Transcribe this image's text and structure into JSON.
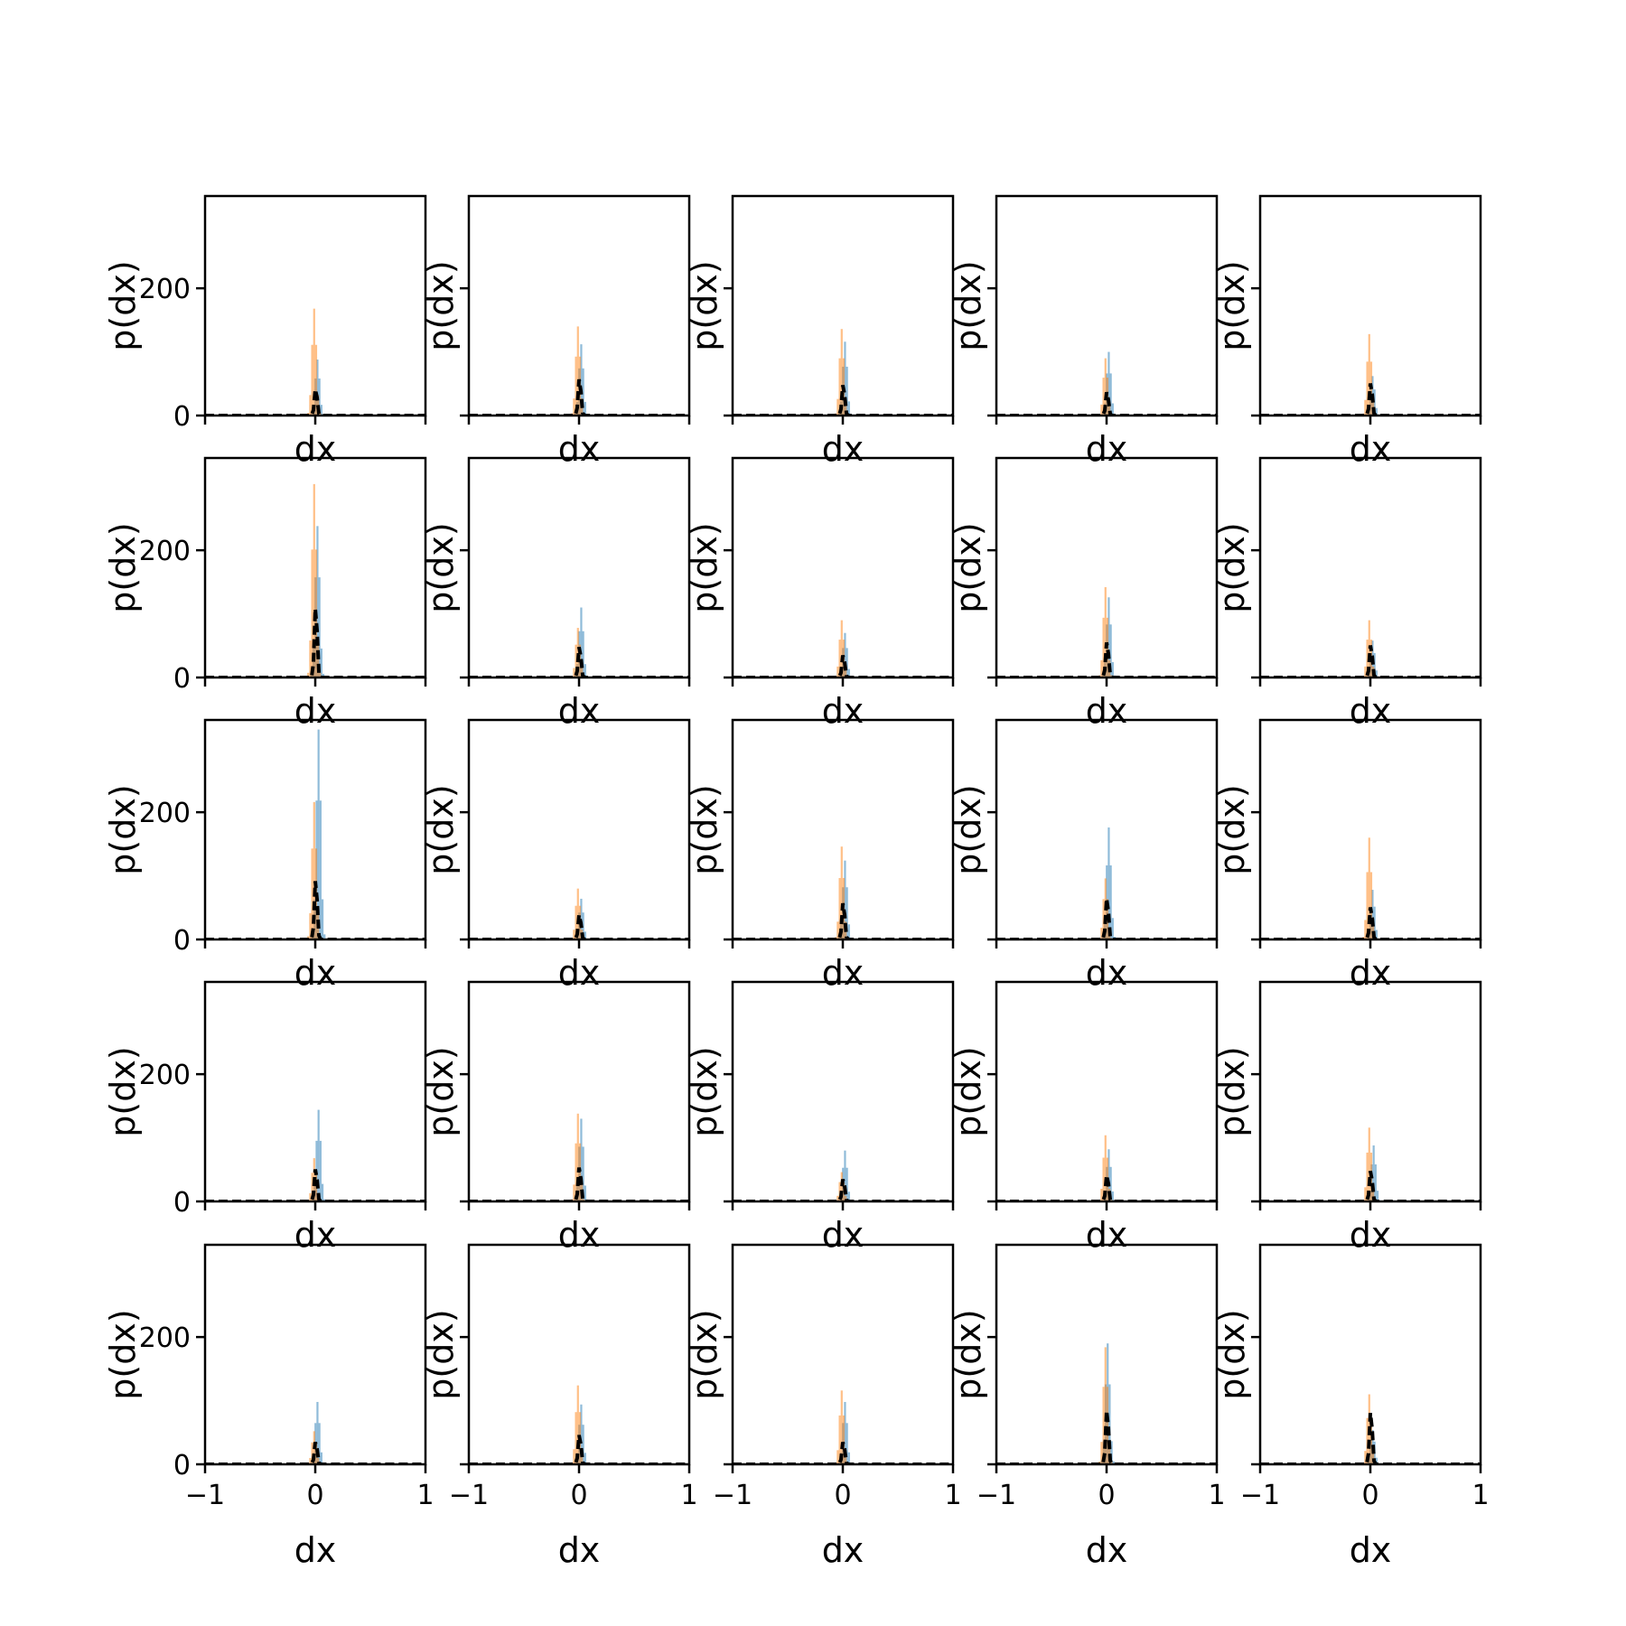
{
  "figure": {
    "rows": 5,
    "cols": 5,
    "xlabel": "dx",
    "ylabel": "p(dx)",
    "xlim": [
      -1,
      1
    ],
    "ylim": [
      0,
      345
    ],
    "xticks": [
      -1,
      0,
      1
    ],
    "xtick_labels": [
      "−1",
      "0",
      "1"
    ],
    "yticks": [
      0,
      200
    ],
    "ytick_labels": [
      "0",
      "200"
    ],
    "colors": {
      "series_a": "#1f77b4",
      "series_b": "#ff7f0e",
      "kde_line": "#000000",
      "axes": "#000000"
    }
  },
  "chart_data": [
    {
      "type": "bar",
      "row": 0,
      "col": 0,
      "series": [
        {
          "peak": 88,
          "center": 0.02
        },
        {
          "peak": 168,
          "center": -0.01
        }
      ],
      "line_peak": 45
    },
    {
      "type": "bar",
      "row": 0,
      "col": 1,
      "series": [
        {
          "peak": 112,
          "center": 0.02
        },
        {
          "peak": 140,
          "center": -0.01
        }
      ],
      "line_peak": 62
    },
    {
      "type": "bar",
      "row": 0,
      "col": 2,
      "series": [
        {
          "peak": 116,
          "center": 0.02
        },
        {
          "peak": 136,
          "center": -0.01
        }
      ],
      "line_peak": 52
    },
    {
      "type": "bar",
      "row": 0,
      "col": 3,
      "series": [
        {
          "peak": 100,
          "center": 0.02
        },
        {
          "peak": 90,
          "center": -0.01
        }
      ],
      "line_peak": 40
    },
    {
      "type": "bar",
      "row": 0,
      "col": 4,
      "series": [
        {
          "peak": 62,
          "center": 0.02
        },
        {
          "peak": 128,
          "center": -0.01
        }
      ],
      "line_peak": 55
    },
    {
      "type": "bar",
      "row": 1,
      "col": 0,
      "series": [
        {
          "peak": 238,
          "center": 0.02
        },
        {
          "peak": 304,
          "center": -0.01
        }
      ],
      "line_peak": 118
    },
    {
      "type": "bar",
      "row": 1,
      "col": 1,
      "series": [
        {
          "peak": 110,
          "center": 0.02
        },
        {
          "peak": 78,
          "center": -0.01
        }
      ],
      "line_peak": 52
    },
    {
      "type": "bar",
      "row": 1,
      "col": 2,
      "series": [
        {
          "peak": 70,
          "center": 0.02
        },
        {
          "peak": 90,
          "center": -0.01
        }
      ],
      "line_peak": 38
    },
    {
      "type": "bar",
      "row": 1,
      "col": 3,
      "series": [
        {
          "peak": 126,
          "center": 0.02
        },
        {
          "peak": 142,
          "center": -0.01
        }
      ],
      "line_peak": 60
    },
    {
      "type": "bar",
      "row": 1,
      "col": 4,
      "series": [
        {
          "peak": 58,
          "center": 0.02
        },
        {
          "peak": 90,
          "center": -0.01
        }
      ],
      "line_peak": 55
    },
    {
      "type": "bar",
      "row": 2,
      "col": 0,
      "series": [
        {
          "peak": 330,
          "center": 0.03
        },
        {
          "peak": 216,
          "center": -0.01
        }
      ],
      "line_peak": 100
    },
    {
      "type": "bar",
      "row": 2,
      "col": 1,
      "series": [
        {
          "peak": 64,
          "center": 0.02
        },
        {
          "peak": 80,
          "center": -0.01
        }
      ],
      "line_peak": 42
    },
    {
      "type": "bar",
      "row": 2,
      "col": 2,
      "series": [
        {
          "peak": 124,
          "center": 0.02
        },
        {
          "peak": 146,
          "center": -0.01
        }
      ],
      "line_peak": 62
    },
    {
      "type": "bar",
      "row": 2,
      "col": 3,
      "series": [
        {
          "peak": 176,
          "center": 0.02
        },
        {
          "peak": 96,
          "center": -0.01
        }
      ],
      "line_peak": 70
    },
    {
      "type": "bar",
      "row": 2,
      "col": 4,
      "series": [
        {
          "peak": 78,
          "center": 0.02
        },
        {
          "peak": 160,
          "center": -0.01
        }
      ],
      "line_peak": 55
    },
    {
      "type": "bar",
      "row": 3,
      "col": 0,
      "series": [
        {
          "peak": 144,
          "center": 0.03
        },
        {
          "peak": 68,
          "center": -0.01
        }
      ],
      "line_peak": 55
    },
    {
      "type": "bar",
      "row": 3,
      "col": 1,
      "series": [
        {
          "peak": 130,
          "center": 0.02
        },
        {
          "peak": 138,
          "center": -0.01
        }
      ],
      "line_peak": 58
    },
    {
      "type": "bar",
      "row": 3,
      "col": 2,
      "series": [
        {
          "peak": 80,
          "center": 0.02
        },
        {
          "peak": 46,
          "center": -0.01
        }
      ],
      "line_peak": 38
    },
    {
      "type": "bar",
      "row": 3,
      "col": 3,
      "series": [
        {
          "peak": 82,
          "center": 0.02
        },
        {
          "peak": 104,
          "center": -0.01
        }
      ],
      "line_peak": 45
    },
    {
      "type": "bar",
      "row": 3,
      "col": 4,
      "series": [
        {
          "peak": 88,
          "center": 0.03
        },
        {
          "peak": 116,
          "center": -0.01
        }
      ],
      "line_peak": 52
    },
    {
      "type": "bar",
      "row": 4,
      "col": 0,
      "series": [
        {
          "peak": 98,
          "center": 0.02
        },
        {
          "peak": 52,
          "center": -0.01
        }
      ],
      "line_peak": 38
    },
    {
      "type": "bar",
      "row": 4,
      "col": 1,
      "series": [
        {
          "peak": 94,
          "center": 0.02
        },
        {
          "peak": 124,
          "center": -0.01
        }
      ],
      "line_peak": 50
    },
    {
      "type": "bar",
      "row": 4,
      "col": 2,
      "series": [
        {
          "peak": 98,
          "center": 0.02
        },
        {
          "peak": 116,
          "center": -0.01
        }
      ],
      "line_peak": 38
    },
    {
      "type": "bar",
      "row": 4,
      "col": 3,
      "series": [
        {
          "peak": 190,
          "center": 0.01
        },
        {
          "peak": 184,
          "center": -0.01
        }
      ],
      "line_peak": 92
    },
    {
      "type": "bar",
      "row": 4,
      "col": 4,
      "series": [
        {
          "peak": 54,
          "center": 0.02
        },
        {
          "peak": 110,
          "center": -0.01
        }
      ],
      "line_peak": 88
    }
  ]
}
